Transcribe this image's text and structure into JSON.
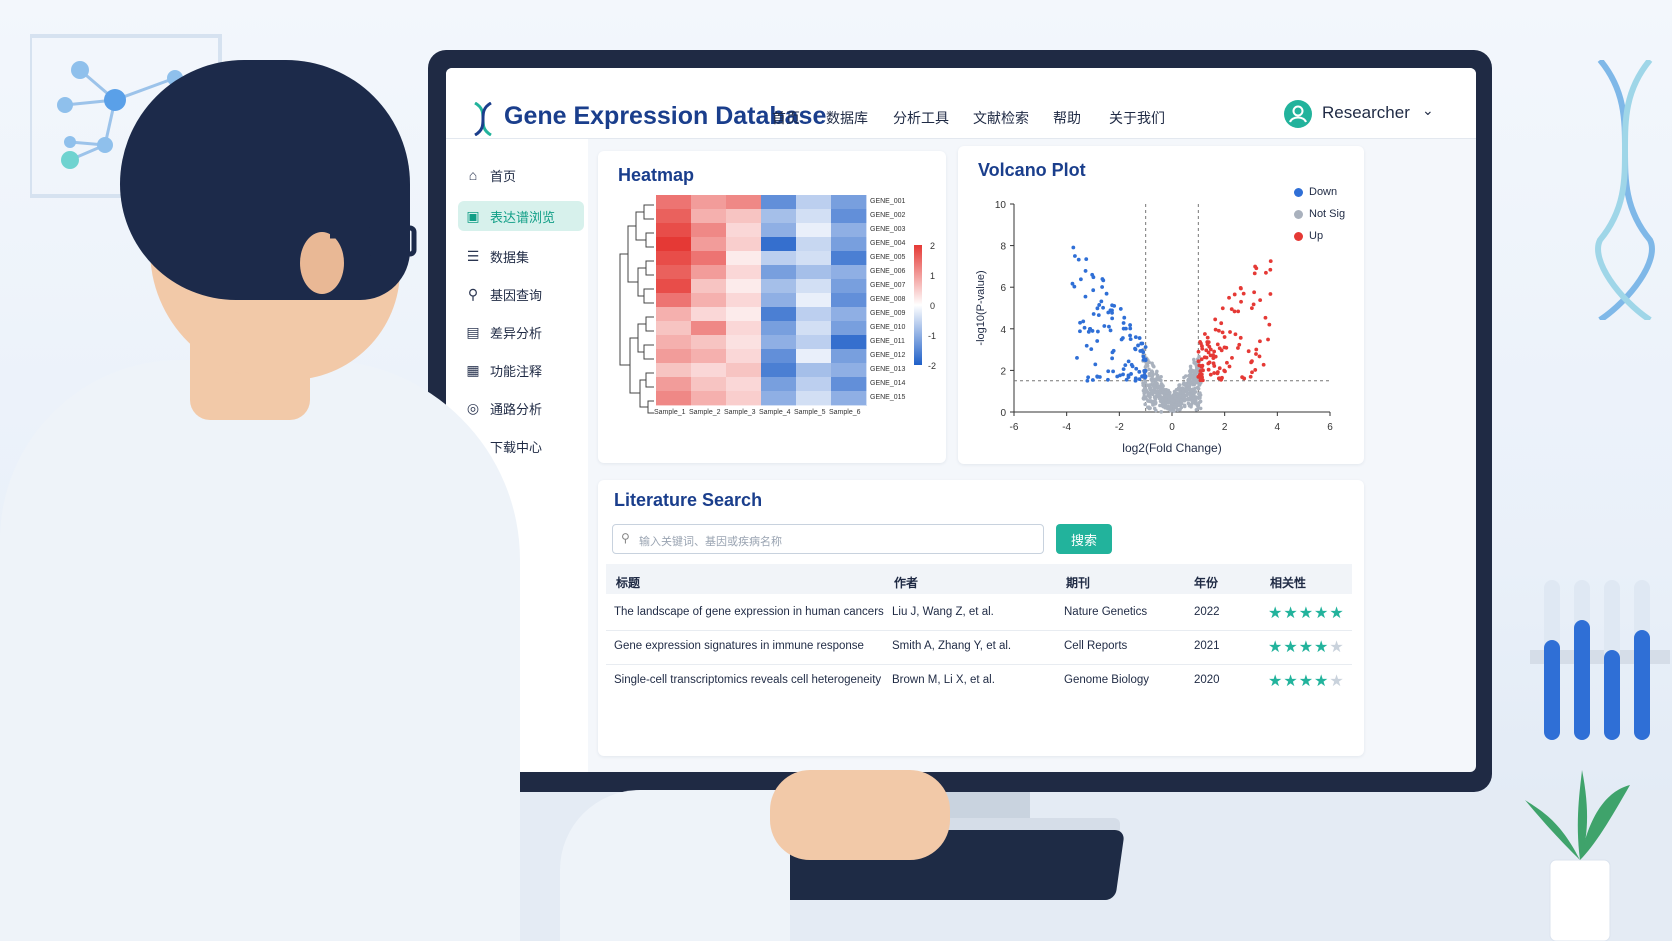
{
  "app": {
    "title": "Gene Expression Database",
    "nav": [
      "首页",
      "数据库",
      "分析工具",
      "文献检索",
      "帮助",
      "关于我们"
    ],
    "user": "Researcher"
  },
  "sidebar": {
    "items": [
      {
        "label": "首页",
        "icon": "home-icon",
        "active": false
      },
      {
        "label": "表达谱浏览",
        "icon": "profile-icon",
        "active": true
      },
      {
        "label": "数据集",
        "icon": "dataset-icon",
        "active": false
      },
      {
        "label": "基因查询",
        "icon": "search-icon",
        "active": false
      },
      {
        "label": "差异分析",
        "icon": "chart-icon",
        "active": false
      },
      {
        "label": "功能注释",
        "icon": "annotation-icon",
        "active": false
      },
      {
        "label": "通路分析",
        "icon": "pathway-icon",
        "active": false
      },
      {
        "label": "下载中心",
        "icon": "download-icon",
        "active": false
      }
    ]
  },
  "heatmap": {
    "title": "Heatmap",
    "scale_ticks": [
      "2",
      "1",
      "0",
      "-1",
      "-2"
    ],
    "colors": {
      "high": "#e53935",
      "mid": "#ffffff",
      "low": "#1e5fc8"
    }
  },
  "volcano": {
    "title": "Volcano Plot",
    "legend": [
      {
        "label": "Down",
        "color": "#2f6fd6"
      },
      {
        "label": "Not Sig",
        "color": "#a9b1bd"
      },
      {
        "label": "Up",
        "color": "#e53935"
      }
    ]
  },
  "chart_data": [
    {
      "type": "heatmap",
      "title": "Heatmap",
      "rows": [
        "GENE_001",
        "GENE_002",
        "GENE_003",
        "GENE_004",
        "GENE_005",
        "GENE_006",
        "GENE_007",
        "GENE_008",
        "GENE_009",
        "GENE_010",
        "GENE_011",
        "GENE_012",
        "GENE_013",
        "GENE_014",
        "GENE_015"
      ],
      "columns": [
        "Sample_1",
        "Sample_2",
        "Sample_3",
        "Sample_4",
        "Sample_5",
        "Sample_6"
      ],
      "values": [
        [
          1.4,
          1.0,
          1.2,
          -1.4,
          -0.6,
          -1.2
        ],
        [
          1.6,
          0.8,
          0.6,
          -0.8,
          -0.4,
          -1.4
        ],
        [
          1.8,
          1.2,
          0.4,
          -1.0,
          -0.2,
          -1.0
        ],
        [
          2.0,
          1.0,
          0.5,
          -1.8,
          -0.5,
          -1.2
        ],
        [
          1.8,
          1.4,
          0.2,
          -0.6,
          -0.4,
          -1.6
        ],
        [
          1.6,
          1.0,
          0.4,
          -1.2,
          -0.8,
          -1.0
        ],
        [
          1.8,
          0.6,
          0.2,
          -0.8,
          -0.4,
          -1.2
        ],
        [
          1.4,
          0.8,
          0.4,
          -1.0,
          -0.2,
          -1.4
        ],
        [
          0.8,
          0.4,
          0.2,
          -1.6,
          -0.6,
          -1.0
        ],
        [
          0.6,
          1.2,
          0.4,
          -1.2,
          -0.4,
          -1.2
        ],
        [
          0.8,
          0.6,
          0.3,
          -1.0,
          -0.6,
          -1.8
        ],
        [
          1.0,
          0.8,
          0.4,
          -1.4,
          -0.2,
          -1.2
        ],
        [
          0.6,
          0.4,
          0.6,
          -1.6,
          -0.8,
          -1.0
        ],
        [
          1.0,
          0.6,
          0.4,
          -1.2,
          -0.6,
          -1.4
        ],
        [
          1.2,
          0.8,
          0.5,
          -1.0,
          -0.4,
          -1.0
        ]
      ],
      "color_scale": {
        "min": -2,
        "max": 2
      }
    },
    {
      "type": "scatter",
      "title": "Volcano Plot",
      "xlabel": "log2(Fold Change)",
      "ylabel": "-log10(P-value)",
      "xlim": [
        -6,
        6
      ],
      "ylim": [
        0,
        10
      ],
      "xticks": [
        -6,
        -4,
        -2,
        0,
        2,
        4,
        6
      ],
      "yticks": [
        0,
        2,
        4,
        6,
        8,
        10
      ],
      "thresholds": {
        "fc": [
          -1,
          1
        ],
        "p": 1.5
      },
      "legend": [
        "Down",
        "Not Sig",
        "Up"
      ],
      "legend_position": "top-right"
    }
  ],
  "literature": {
    "title": "Literature Search",
    "search_placeholder": "输入关键词、基因或疾病名称",
    "search_button": "搜索",
    "columns": [
      "标题",
      "作者",
      "期刊",
      "年份",
      "相关性"
    ],
    "rows": [
      {
        "title": "The landscape of gene expression in human cancers",
        "authors": "Liu J, Wang Z, et al.",
        "journal": "Nature Genetics",
        "year": "2022",
        "stars": 5
      },
      {
        "title": "Gene expression signatures in immune response",
        "authors": "Smith A, Zhang Y, et al.",
        "journal": "Cell Reports",
        "year": "2021",
        "stars": 4
      },
      {
        "title": "Single-cell transcriptomics reveals cell heterogeneity",
        "authors": "Brown M, Li X, et al.",
        "journal": "Genome Biology",
        "year": "2020",
        "stars": 4
      }
    ]
  }
}
